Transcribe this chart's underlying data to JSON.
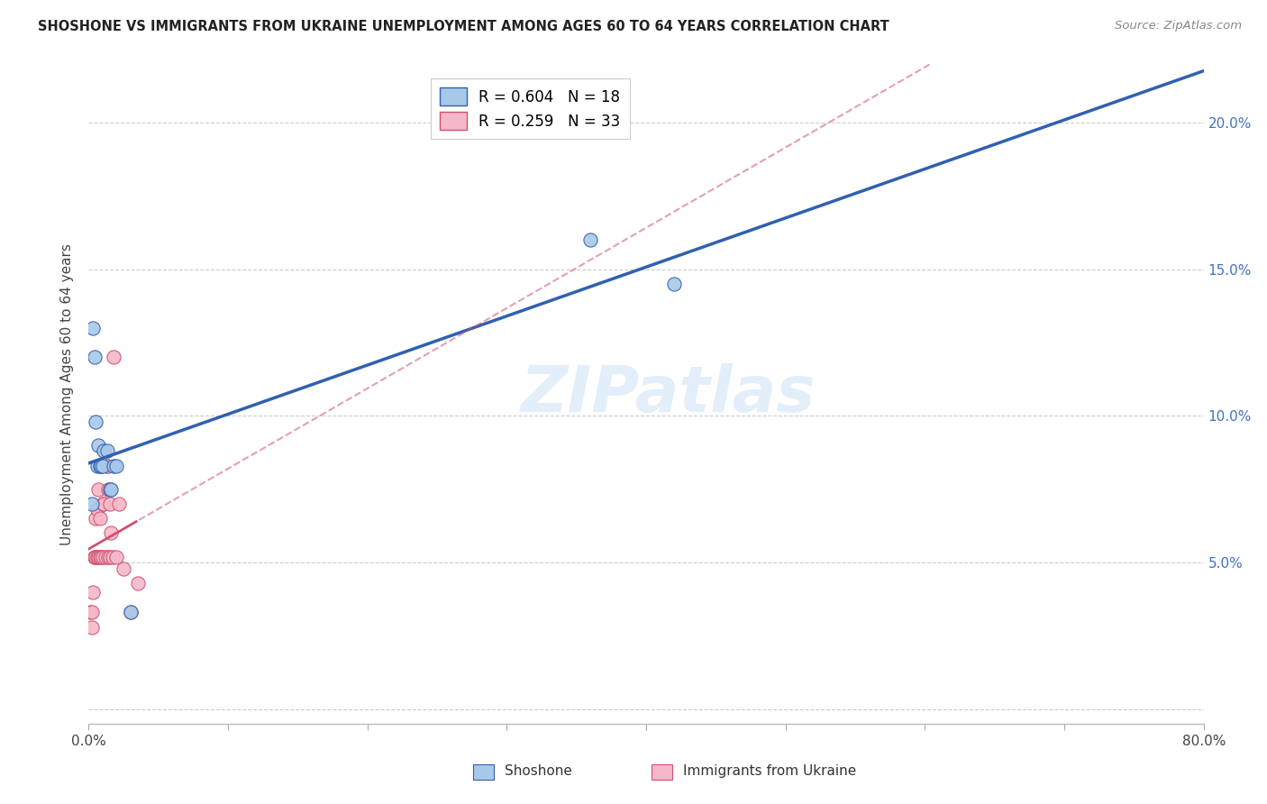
{
  "title": "SHOSHONE VS IMMIGRANTS FROM UKRAINE UNEMPLOYMENT AMONG AGES 60 TO 64 YEARS CORRELATION CHART",
  "source": "Source: ZipAtlas.com",
  "ylabel": "Unemployment Among Ages 60 to 64 years",
  "xlim": [
    0.0,
    0.8
  ],
  "ylim": [
    -0.005,
    0.22
  ],
  "shoshone_R": 0.604,
  "shoshone_N": 18,
  "ukraine_R": 0.259,
  "ukraine_N": 33,
  "shoshone_color": "#a8c8e8",
  "ukraine_color": "#f5b8c8",
  "shoshone_line_color": "#3060b0",
  "ukraine_line_color": "#d05070",
  "shoshone_x": [
    0.002,
    0.003,
    0.004,
    0.005,
    0.006,
    0.007,
    0.008,
    0.009,
    0.01,
    0.011,
    0.013,
    0.015,
    0.016,
    0.018,
    0.02,
    0.03,
    0.36,
    0.42
  ],
  "shoshone_y": [
    0.07,
    0.13,
    0.12,
    0.098,
    0.083,
    0.09,
    0.083,
    0.083,
    0.083,
    0.088,
    0.088,
    0.075,
    0.075,
    0.083,
    0.083,
    0.033,
    0.16,
    0.145
  ],
  "ukraine_x": [
    0.001,
    0.002,
    0.002,
    0.003,
    0.004,
    0.004,
    0.005,
    0.005,
    0.006,
    0.006,
    0.007,
    0.007,
    0.008,
    0.008,
    0.009,
    0.01,
    0.01,
    0.011,
    0.012,
    0.013,
    0.013,
    0.014,
    0.014,
    0.015,
    0.015,
    0.016,
    0.017,
    0.018,
    0.02,
    0.022,
    0.025,
    0.03,
    0.035
  ],
  "ukraine_y": [
    0.033,
    0.033,
    0.028,
    0.04,
    0.052,
    0.052,
    0.052,
    0.065,
    0.052,
    0.068,
    0.052,
    0.075,
    0.052,
    0.065,
    0.052,
    0.052,
    0.07,
    0.07,
    0.052,
    0.083,
    0.083,
    0.075,
    0.052,
    0.052,
    0.07,
    0.06,
    0.052,
    0.12,
    0.052,
    0.07,
    0.048,
    0.033,
    0.043
  ],
  "watermark": "ZIPatlas",
  "shoshone_label": "Shoshone",
  "ukraine_label": "Immigrants from Ukraine"
}
